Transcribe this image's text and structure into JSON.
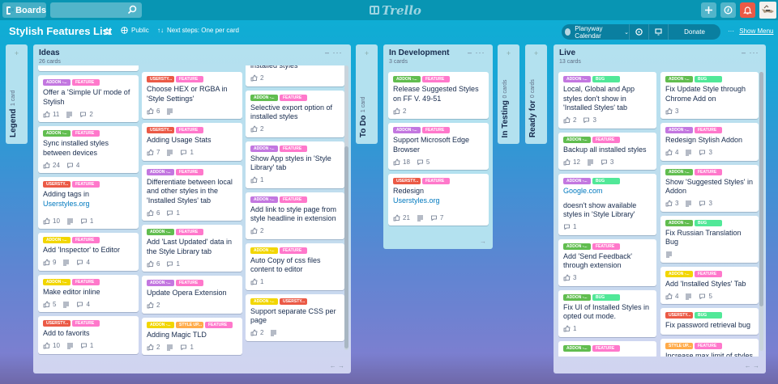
{
  "header": {
    "boards_label": "Boards",
    "search_placeholder": "",
    "logo_text": "Trello",
    "add_icon": "plus-icon",
    "info_icon": "info-icon",
    "notifications_icon": "bell-icon",
    "colors": {
      "notification": "#eb5a46",
      "topbar": "#0895b3"
    }
  },
  "board": {
    "title": "Stylish Features List",
    "visibility": "Public",
    "next_steps": "Next steps: One per card",
    "powerup_label": "Planyway Calendar",
    "donate_label": "Donate",
    "show_menu_label": "Show Menu",
    "menu_dots": "•••"
  },
  "label_colors": {
    "ADDON_purple": "#c377e0",
    "ADDON_green": "#61bd4f",
    "ADDON_yellow": "#f2d600",
    "USERSTY": "#eb5a46",
    "FEATURE": "#ff78cb",
    "BUG": "#51e898",
    "STYLE_UP": "#ffab4a"
  },
  "collapsed_lists": [
    {
      "name": "Legend",
      "count": "1 card"
    },
    {
      "name": "To Do",
      "count": "1 card"
    },
    {
      "name": "In Testing",
      "count": "0 cards"
    },
    {
      "name": "Ready for",
      "count": "0 cards"
    }
  ],
  "lists": {
    "ideas": {
      "title": "Ideas",
      "count": "26 cards",
      "col1": [
        {
          "labels": [
            [
              "ADDON -...",
              "#c377e0"
            ],
            [
              "FEATURE",
              "#ff78cb"
            ]
          ],
          "title": "Offer a 'Simple UI' mode of Stylish",
          "votes": "11",
          "desc": true,
          "comments": "2"
        },
        {
          "labels": [
            [
              "ADDON -...",
              "#61bd4f"
            ],
            [
              "FEATURE",
              "#ff78cb"
            ]
          ],
          "title": "Sync installed styles between devices",
          "votes": "24",
          "desc": false,
          "comments": "4"
        },
        {
          "labels": [
            [
              "USERSTY...",
              "#eb5a46"
            ],
            [
              "FEATURE",
              "#ff78cb"
            ]
          ],
          "title": "Adding tags in",
          "link": "Userstyles.org",
          "votes": "10",
          "desc": true,
          "comments": "1"
        },
        {
          "labels": [
            [
              "ADDON -...",
              "#f2d600"
            ],
            [
              "FEATURE",
              "#ff78cb"
            ]
          ],
          "title": "Add 'Inspector' to Editor",
          "votes": "9",
          "desc": true,
          "comments": "4"
        },
        {
          "labels": [
            [
              "ADDON -...",
              "#f2d600"
            ],
            [
              "FEATURE",
              "#ff78cb"
            ]
          ],
          "title": "Make editor inline",
          "votes": "5",
          "desc": true,
          "comments": "4"
        },
        {
          "labels": [
            [
              "USERSTY...",
              "#eb5a46"
            ],
            [
              "FEATURE",
              "#ff78cb"
            ]
          ],
          "title": "Add to favorits",
          "votes": "10",
          "desc": true,
          "comments": "1"
        }
      ],
      "col2": [
        {
          "labels": [
            [
              "USERSTY...",
              "#eb5a46"
            ],
            [
              "FEATURE",
              "#ff78cb"
            ]
          ],
          "title": "Choose HEX or RGBA in 'Style Settings'",
          "votes": "6",
          "desc": true,
          "comments": ""
        },
        {
          "labels": [
            [
              "USERSTY...",
              "#eb5a46"
            ],
            [
              "FEATURE",
              "#ff78cb"
            ]
          ],
          "title": "Adding Usage Stats",
          "votes": "7",
          "desc": true,
          "comments": "1"
        },
        {
          "labels": [
            [
              "ADDON -...",
              "#c377e0"
            ],
            [
              "FEATURE",
              "#ff78cb"
            ]
          ],
          "title": "Differentiate between local and other styles in the 'Installed Styles' tab",
          "votes": "6",
          "desc": false,
          "comments": "1"
        },
        {
          "labels": [
            [
              "ADDON -...",
              "#61bd4f"
            ],
            [
              "FEATURE",
              "#ff78cb"
            ]
          ],
          "title": "Add 'Last Updated' data in the Style Library tab",
          "votes": "6",
          "desc": false,
          "comments": "1"
        },
        {
          "labels": [
            [
              "ADDON -...",
              "#c377e0"
            ],
            [
              "FEATURE",
              "#ff78cb"
            ]
          ],
          "title": "Update Opera Extension",
          "votes": "2",
          "desc": false,
          "comments": ""
        },
        {
          "labels": [
            [
              "ADDON -...",
              "#f2d600"
            ],
            [
              "STYLE UP...",
              "#ffab4a"
            ],
            [
              "FEATURE",
              "#ff78cb"
            ]
          ],
          "title": "Adding Magic TLD",
          "votes": "2",
          "desc": true,
          "comments": "1"
        }
      ],
      "col3": [
        {
          "labels": [],
          "title": "installed styles",
          "votes": "2",
          "desc": false,
          "comments": ""
        },
        {
          "labels": [
            [
              "ADDON -...",
              "#61bd4f"
            ],
            [
              "FEATURE",
              "#ff78cb"
            ]
          ],
          "title": "Selective export option of installed styles",
          "votes": "2",
          "desc": false,
          "comments": ""
        },
        {
          "labels": [
            [
              "ADDON -...",
              "#c377e0"
            ],
            [
              "FEATURE",
              "#ff78cb"
            ]
          ],
          "title": "Show App styles in 'Style Library' tab",
          "votes": "1",
          "desc": false,
          "comments": ""
        },
        {
          "labels": [
            [
              "ADDON -...",
              "#c377e0"
            ],
            [
              "FEATURE",
              "#ff78cb"
            ]
          ],
          "title": "Add link to style page from style headline in extension",
          "votes": "2",
          "desc": false,
          "comments": ""
        },
        {
          "labels": [
            [
              "ADDON -...",
              "#f2d600"
            ],
            [
              "FEATURE",
              "#ff78cb"
            ]
          ],
          "title": "Auto Copy of css files content to editor",
          "votes": "1",
          "desc": false,
          "comments": ""
        },
        {
          "labels": [
            [
              "ADDON -...",
              "#f2d600"
            ],
            [
              "USERSTY...",
              "#eb5a46"
            ]
          ],
          "title": "Support separate CSS per page",
          "votes": "2",
          "desc": true,
          "comments": ""
        }
      ]
    },
    "in_development": {
      "title": "In Development",
      "count": "3 cards",
      "cards": [
        {
          "labels": [
            [
              "ADDON -...",
              "#61bd4f"
            ],
            [
              "FEATURE",
              "#ff78cb"
            ]
          ],
          "title": "Release Suggested Styles on FF V. 49-51",
          "votes": "2",
          "desc": false,
          "comments": ""
        },
        {
          "labels": [
            [
              "ADDON -...",
              "#c377e0"
            ],
            [
              "FEATURE",
              "#ff78cb"
            ]
          ],
          "title": "Support Microsoft Edge Browser",
          "votes": "18",
          "desc": false,
          "comments": "5"
        },
        {
          "labels": [
            [
              "USERSTY...",
              "#eb5a46"
            ],
            [
              "FEATURE",
              "#ff78cb"
            ]
          ],
          "title": "Redesign",
          "link": "Userstyles.org",
          "votes": "21",
          "desc": true,
          "comments": "7"
        }
      ]
    },
    "live": {
      "title": "Live",
      "count": "13 cards",
      "col1": [
        {
          "labels": [
            [
              "ADDON -...",
              "#c377e0"
            ],
            [
              "BUG",
              "#51e898"
            ]
          ],
          "title": "Local, Global and App styles don't show in 'Installed Styles' tab",
          "votes": "2",
          "desc": false,
          "comments": "3"
        },
        {
          "labels": [
            [
              "ADDON -...",
              "#61bd4f"
            ],
            [
              "FEATURE",
              "#ff78cb"
            ]
          ],
          "title": "Backup all installed styles",
          "votes": "12",
          "desc": true,
          "comments": "3"
        },
        {
          "labels": [
            [
              "ADDON -...",
              "#c377e0"
            ],
            [
              "BUG",
              "#51e898"
            ]
          ],
          "title": "",
          "link_top": "Google.com",
          "title_after": "doesn't show available styles in 'Style Library'",
          "votes": "",
          "desc": false,
          "comments": "1"
        },
        {
          "labels": [
            [
              "ADDON -...",
              "#61bd4f"
            ],
            [
              "FEATURE",
              "#ff78cb"
            ]
          ],
          "title": "Add 'Send Feedback' through extension",
          "votes": "3",
          "desc": false,
          "comments": ""
        },
        {
          "labels": [
            [
              "ADDON -...",
              "#61bd4f"
            ],
            [
              "BUG",
              "#51e898"
            ]
          ],
          "title": "Fix UI of Installed Styles in opted out mode.",
          "votes": "1",
          "desc": false,
          "comments": ""
        },
        {
          "labels": [
            [
              "ADDON -...",
              "#61bd4f"
            ],
            [
              "FEATURE",
              "#ff78cb"
            ]
          ],
          "title": "",
          "votes": "",
          "desc": false,
          "comments": ""
        }
      ],
      "col2": [
        {
          "labels": [
            [
              "ADDON -...",
              "#61bd4f"
            ],
            [
              "BUG",
              "#51e898"
            ]
          ],
          "title": "Fix Update Style through Chrome Add on",
          "votes": "3",
          "desc": false,
          "comments": ""
        },
        {
          "labels": [
            [
              "ADDON -...",
              "#c377e0"
            ],
            [
              "FEATURE",
              "#ff78cb"
            ]
          ],
          "title": "Redesign Stylish Addon",
          "votes": "4",
          "desc": true,
          "comments": "3"
        },
        {
          "labels": [
            [
              "ADDON -...",
              "#61bd4f"
            ],
            [
              "FEATURE",
              "#ff78cb"
            ]
          ],
          "title": "Show 'Suggested Styles' in Addon",
          "votes": "3",
          "desc": true,
          "comments": "3"
        },
        {
          "labels": [
            [
              "ADDON -...",
              "#61bd4f"
            ],
            [
              "BUG",
              "#51e898"
            ]
          ],
          "title": "Fix Russian Translation Bug",
          "votes": "",
          "desc": true,
          "comments": ""
        },
        {
          "labels": [
            [
              "ADDON -...",
              "#f2d600"
            ],
            [
              "FEATURE",
              "#ff78cb"
            ]
          ],
          "title": "Add 'Installed Styles' Tab",
          "votes": "4",
          "desc": true,
          "comments": "5"
        },
        {
          "labels": [
            [
              "USERSTY...",
              "#eb5a46"
            ],
            [
              "BUG",
              "#51e898"
            ]
          ],
          "title": "Fix password retrieval bug",
          "votes": "",
          "desc": false,
          "comments": ""
        },
        {
          "labels": [
            [
              "STYLE UP...",
              "#ffab4a"
            ],
            [
              "FEATURE",
              "#ff78cb"
            ]
          ],
          "title": "Increase max limit of styles",
          "votes": "",
          "desc": false,
          "comments": ""
        }
      ]
    }
  }
}
